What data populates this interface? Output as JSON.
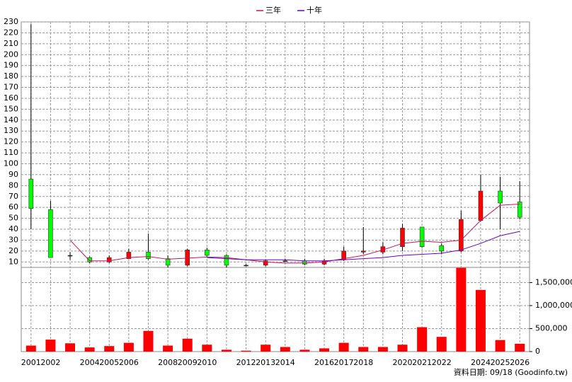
{
  "chart_data": [
    {
      "type": "candlestick",
      "categories": [
        "2001",
        "2002",
        null,
        "2004",
        "2005",
        "2006",
        null,
        "2008",
        "2009",
        "2010",
        null,
        "2012",
        "2013",
        "2014",
        null,
        "2016",
        "2017",
        "2018",
        null,
        "2020",
        "2021",
        "2022",
        null,
        "2024",
        "2025",
        "2026"
      ],
      "open": [
        86,
        58,
        16,
        14,
        10,
        13,
        19,
        13,
        7,
        21,
        16,
        7,
        7,
        11,
        11,
        8,
        12,
        19,
        19,
        24,
        42,
        25,
        20,
        48,
        75,
        65
      ],
      "high": [
        228,
        66,
        19,
        15,
        16,
        22,
        36,
        16,
        22,
        23,
        17,
        8,
        12,
        13,
        13,
        13,
        24,
        42,
        28,
        45,
        42,
        27,
        57,
        90,
        88,
        84
      ],
      "low": [
        40,
        14,
        12,
        9,
        9,
        13,
        12,
        5,
        6,
        15,
        5,
        6,
        6,
        10,
        7,
        7,
        11,
        17,
        17,
        20,
        23,
        17,
        19,
        47,
        40,
        49
      ],
      "close": [
        59,
        14,
        16,
        10,
        14,
        19,
        13,
        7,
        21,
        16,
        7,
        7,
        11,
        11,
        8,
        11,
        20,
        20,
        24,
        41,
        24,
        20,
        49,
        75,
        64,
        51
      ],
      "up_color": "#ff0000",
      "down_color": "#00ff00",
      "series": [
        {
          "name": "三年",
          "color": "#d0105a",
          "values": [
            null,
            null,
            30,
            11,
            11,
            14,
            15,
            12.5,
            13.5,
            14.5,
            14,
            12,
            10,
            9,
            9,
            10,
            13,
            16,
            21,
            27,
            29,
            28,
            30,
            48,
            62,
            63
          ]
        },
        {
          "name": "十年",
          "color": "#6a00c8",
          "values": [
            null,
            null,
            null,
            null,
            null,
            null,
            null,
            null,
            null,
            14,
            13,
            12,
            12,
            12,
            11,
            11,
            12,
            13,
            14,
            16,
            17,
            18,
            21,
            27,
            34,
            38
          ]
        }
      ],
      "ylim": [
        5,
        230
      ],
      "yticks": [
        10,
        20,
        30,
        40,
        50,
        60,
        70,
        80,
        90,
        100,
        110,
        120,
        130,
        140,
        150,
        160,
        170,
        180,
        190,
        200,
        210,
        220,
        230
      ],
      "grid": true
    },
    {
      "type": "bar",
      "color": "#ff0000",
      "values": [
        130000,
        260000,
        180000,
        90000,
        120000,
        190000,
        450000,
        130000,
        280000,
        150000,
        40000,
        20000,
        150000,
        100000,
        40000,
        70000,
        190000,
        100000,
        100000,
        150000,
        530000,
        320000,
        1820000,
        1340000,
        250000,
        170000
      ],
      "ylim": [
        0,
        1830000
      ],
      "yticks": [
        0,
        {
          "value": 500000,
          "label": "500,000"
        },
        {
          "value": 1000000,
          "label": "1,000,000"
        },
        {
          "value": 1500000,
          "label": "1,500,000"
        }
      ],
      "grid": true
    }
  ],
  "footer": "資料日期: 09/18 (Goodinfo.tw)"
}
